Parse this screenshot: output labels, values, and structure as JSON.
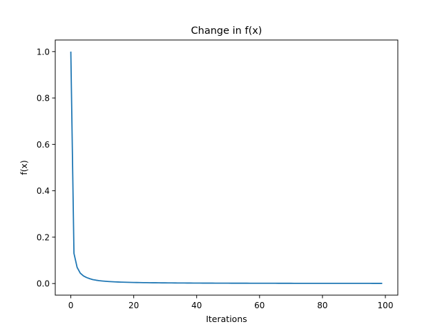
{
  "chart_data": {
    "type": "line",
    "title": "Change in f(x)",
    "xlabel": "Iterations",
    "ylabel": "f(x)",
    "xlim": [
      -4.95,
      103.95
    ],
    "ylim": [
      -0.05,
      1.05
    ],
    "xticks": [
      0,
      20,
      40,
      60,
      80,
      100
    ],
    "yticks": [
      0.0,
      0.2,
      0.4,
      0.6,
      0.8,
      1.0
    ],
    "xtick_labels": [
      "0",
      "20",
      "40",
      "60",
      "80",
      "100"
    ],
    "ytick_labels": [
      "0.0",
      "0.2",
      "0.4",
      "0.6",
      "0.8",
      "1.0"
    ],
    "grid": false,
    "legend": false,
    "series": [
      {
        "color": "#1f77b4",
        "x": [
          0,
          1,
          2,
          3,
          4,
          5,
          6,
          7,
          8,
          9,
          10,
          11,
          12,
          13,
          14,
          15,
          16,
          17,
          18,
          19,
          20,
          21,
          22,
          23,
          24,
          25,
          26,
          27,
          28,
          29,
          30,
          31,
          32,
          33,
          34,
          35,
          36,
          37,
          38,
          39,
          40,
          41,
          42,
          43,
          44,
          45,
          46,
          47,
          48,
          49,
          50,
          51,
          52,
          53,
          54,
          55,
          56,
          57,
          58,
          59,
          60,
          61,
          62,
          63,
          64,
          65,
          66,
          67,
          68,
          69,
          70,
          71,
          72,
          73,
          74,
          75,
          76,
          77,
          78,
          79,
          80,
          81,
          82,
          83,
          84,
          85,
          86,
          87,
          88,
          89,
          90,
          91,
          92,
          93,
          94,
          95,
          96,
          97,
          98,
          99
        ],
        "y": [
          1.0,
          0.13,
          0.07,
          0.045,
          0.033,
          0.026,
          0.021,
          0.017,
          0.0145,
          0.0125,
          0.011,
          0.0098,
          0.0088,
          0.008,
          0.0073,
          0.0067,
          0.0062,
          0.0057,
          0.0053,
          0.005,
          0.0047,
          0.0044,
          0.0042,
          0.004,
          0.0038,
          0.0036,
          0.0034,
          0.0033,
          0.0031,
          0.003,
          0.0029,
          0.0028,
          0.0027,
          0.0026,
          0.0025,
          0.0024,
          0.0023,
          0.0022,
          0.0022,
          0.0021,
          0.002,
          0.002,
          0.0019,
          0.0019,
          0.0018,
          0.0018,
          0.0017,
          0.0017,
          0.0016,
          0.0016,
          0.0016,
          0.0015,
          0.0015,
          0.0015,
          0.0014,
          0.0014,
          0.0014,
          0.0013,
          0.0013,
          0.0013,
          0.0013,
          0.0012,
          0.0012,
          0.0012,
          0.0012,
          0.0012,
          0.0011,
          0.0011,
          0.0011,
          0.0011,
          0.0011,
          0.001,
          0.001,
          0.001,
          0.001,
          0.001,
          0.001,
          0.001,
          0.0009,
          0.0009,
          0.0009,
          0.0009,
          0.0009,
          0.0009,
          0.0009,
          0.0009,
          0.0008,
          0.0008,
          0.0008,
          0.0008,
          0.0008,
          0.0008,
          0.0008,
          0.0008,
          0.0008,
          0.0008,
          0.0007,
          0.0007,
          0.0007,
          0.0007
        ]
      }
    ]
  }
}
